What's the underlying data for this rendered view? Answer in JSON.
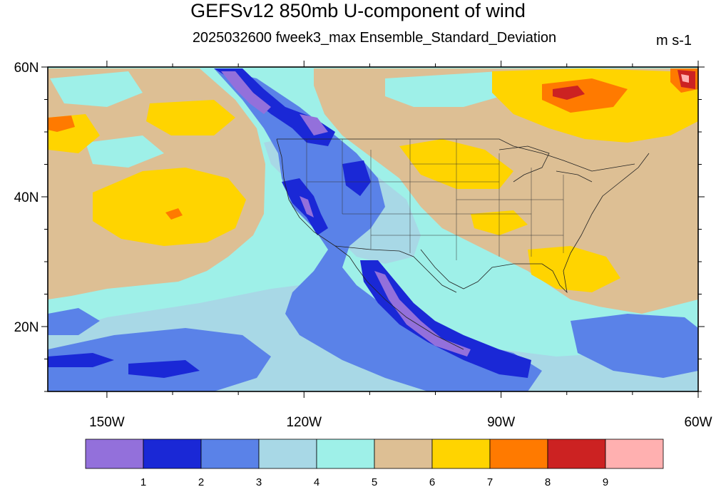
{
  "title": "GEFSv12 850mb U-component of wind",
  "subtitle": "2025032600 fweek3_max Ensemble_Standard_Deviation",
  "units": "m s-1",
  "map": {
    "lat_labels": [
      {
        "text": "60N",
        "lat": 60
      },
      {
        "text": "40N",
        "lat": 40
      },
      {
        "text": "20N",
        "lat": 20
      }
    ],
    "lon_labels": [
      {
        "text": "150W",
        "lon": -150
      },
      {
        "text": "120W",
        "lon": -120
      },
      {
        "text": "90W",
        "lon": -90
      },
      {
        "text": "60W",
        "lon": -60
      }
    ],
    "lon_range": [
      -159,
      -60
    ],
    "lat_range": [
      10,
      60
    ]
  },
  "colorbar": {
    "levels": [
      "1",
      "2",
      "3",
      "4",
      "5",
      "6",
      "7",
      "8",
      "9"
    ],
    "colors": [
      "#9370db",
      "#1a28d6",
      "#5a82e8",
      "#a8d8e6",
      "#9ef0e8",
      "#ddbf94",
      "#ffd400",
      "#ff7a00",
      "#cc2222",
      "#ffb0b0"
    ]
  }
}
